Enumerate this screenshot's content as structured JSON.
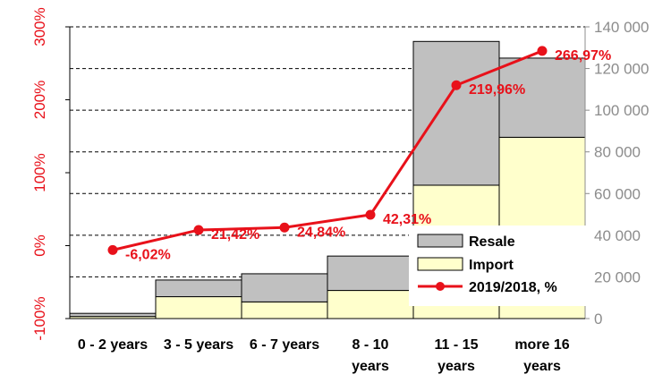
{
  "chart_data": {
    "type": "bar",
    "stacked": true,
    "categories": [
      "0 - 2 years",
      "3 - 5 years",
      "6 - 7 years",
      "8 - 10 years",
      "11 - 15 years",
      "more 16 years"
    ],
    "category_lines": [
      [
        "0 - 2 years"
      ],
      [
        "3 - 5 years"
      ],
      [
        "6 - 7 years"
      ],
      [
        "8 - 10",
        "years"
      ],
      [
        "11 - 15",
        "years"
      ],
      [
        "more 16",
        "years"
      ]
    ],
    "series": [
      {
        "name": "Import",
        "color": "#ffffcc",
        "axis": "right",
        "values": [
          1000,
          10500,
          8000,
          13500,
          64000,
          87000
        ]
      },
      {
        "name": "Resale",
        "color": "#c0c0c0",
        "axis": "right",
        "values": [
          1500,
          8000,
          13500,
          16500,
          69000,
          38000
        ]
      },
      {
        "name": "2019/2018, %",
        "color": "#e8111a",
        "type": "line",
        "axis": "left",
        "values": [
          -6.02,
          21.42,
          24.84,
          42.31,
          219.96,
          266.97
        ],
        "labels": [
          "-6,02%",
          "21,42%",
          "24,84%",
          "42,31%",
          "219,96%",
          "266,97%"
        ]
      }
    ],
    "y_left": {
      "ylim": [
        -100,
        300
      ],
      "ticks": [
        -100,
        0,
        100,
        200,
        300
      ],
      "tick_labels": [
        "-100%",
        "0%",
        "100%",
        "200%",
        "300%"
      ],
      "color": "#e8111a"
    },
    "y_right": {
      "ylim": [
        0,
        140000
      ],
      "ticks": [
        0,
        20000,
        40000,
        60000,
        80000,
        100000,
        120000,
        140000
      ],
      "tick_labels": [
        "0",
        "20 000",
        "40 000",
        "60 000",
        "80 000",
        "100 000",
        "120 000",
        "140 000"
      ],
      "color": "#8c8c8c"
    },
    "grid": true,
    "legend_position": "bottom-right",
    "legend": [
      "Resale",
      "Import",
      "2019/2018, %"
    ]
  }
}
